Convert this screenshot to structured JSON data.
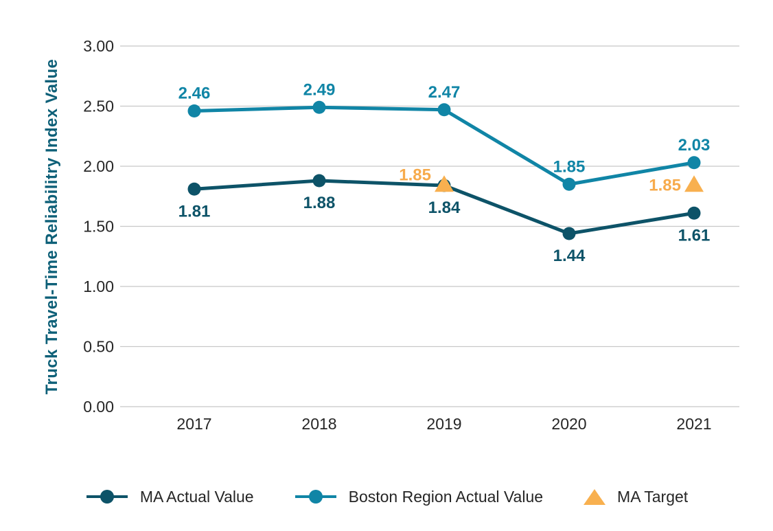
{
  "chart_data": {
    "type": "line",
    "title": "",
    "ylabel": "Truck Travel-Time Reliabilitry Index Value",
    "xlabel": "",
    "categories": [
      "2017",
      "2018",
      "2019",
      "2020",
      "2021"
    ],
    "ylim": [
      0,
      3
    ],
    "ytick_interval": 0.5,
    "ytick_labels": [
      "0.00",
      "0.50",
      "1.00",
      "1.50",
      "2.00",
      "2.50",
      "3.00"
    ],
    "grid": true,
    "grid_color": "#c8c8c8",
    "axis_text_color": "#262626",
    "ylabel_color": "#0e6078",
    "legend_position": "bottom",
    "series": [
      {
        "id": "ma-actual",
        "name": "MA Actual Value",
        "marker": "circle",
        "color": "#0d5368",
        "values": [
          1.81,
          1.88,
          1.84,
          1.44,
          1.61
        ],
        "label_position": "below"
      },
      {
        "id": "boston-actual",
        "name": "Boston Region Actual Value",
        "marker": "circle",
        "color": "#1085a6",
        "values": [
          2.46,
          2.49,
          2.47,
          1.85,
          2.03
        ],
        "label_position": "above"
      },
      {
        "id": "ma-target",
        "name": "MA Target",
        "marker": "triangle",
        "color": "#f8b04f",
        "label_color": "#f7ab4c",
        "points": [
          {
            "category": "2019",
            "value": 1.85,
            "label_dy": -6
          },
          {
            "category": "2021",
            "value": 1.85,
            "label_dy": 9
          }
        ],
        "label_position": "left"
      }
    ]
  }
}
